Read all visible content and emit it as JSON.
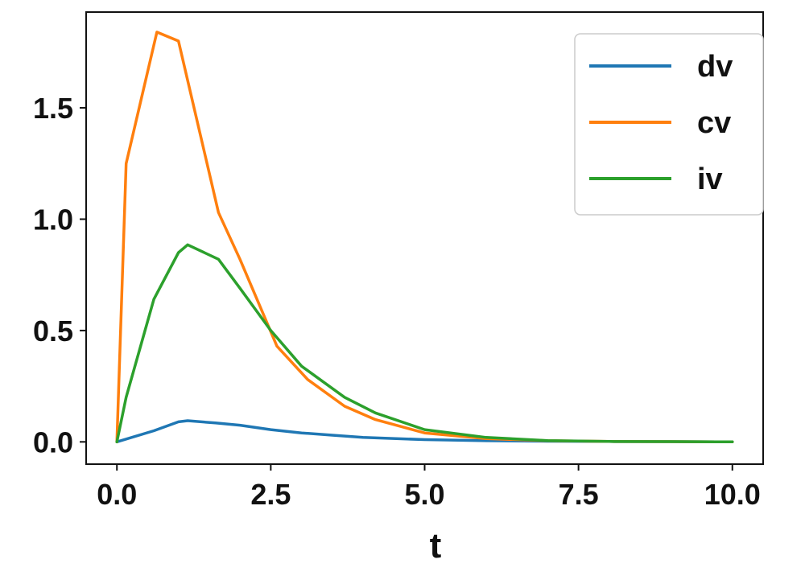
{
  "chart_data": {
    "type": "line",
    "title": "",
    "xlabel": "t",
    "ylabel": "",
    "xlim": [
      -0.5,
      10.5
    ],
    "ylim": [
      -0.1,
      1.93
    ],
    "xticks": [
      0.0,
      2.5,
      5.0,
      7.5,
      10.0
    ],
    "xtick_labels": [
      "0.0",
      "2.5",
      "5.0",
      "7.5",
      "10.0"
    ],
    "yticks": [
      0.0,
      0.5,
      1.0,
      1.5
    ],
    "ytick_labels": [
      "0.0",
      "0.5",
      "1.0",
      "1.5"
    ],
    "grid": false,
    "legend_position": "top-right",
    "series": [
      {
        "name": "dv",
        "color": "#1f77b4",
        "x": [
          0,
          0.6,
          1.0,
          1.15,
          1.6,
          2.0,
          2.5,
          3.0,
          3.5,
          4.0,
          5.0,
          6.0,
          7.0,
          8.0,
          9.0,
          10.0
        ],
        "y": [
          0,
          0.05,
          0.09,
          0.095,
          0.085,
          0.075,
          0.055,
          0.04,
          0.03,
          0.02,
          0.01,
          0.005,
          0.003,
          0.002,
          0.001,
          0
        ]
      },
      {
        "name": "cv",
        "color": "#ff7f0e",
        "x": [
          0,
          0.15,
          0.65,
          1.0,
          1.65,
          2.0,
          2.6,
          3.1,
          3.7,
          4.2,
          5.0,
          6.0,
          7.0,
          8.0,
          9.0,
          10.0
        ],
        "y": [
          0,
          1.25,
          1.84,
          1.8,
          1.03,
          0.82,
          0.43,
          0.28,
          0.16,
          0.1,
          0.04,
          0.015,
          0.005,
          0.002,
          0.001,
          0
        ]
      },
      {
        "name": "iv",
        "color": "#2ca02c",
        "x": [
          0,
          0.15,
          0.6,
          1.0,
          1.15,
          1.65,
          2.0,
          2.5,
          3.0,
          3.7,
          4.2,
          5.0,
          6.0,
          7.0,
          8.0,
          9.0,
          10.0
        ],
        "y": [
          0,
          0.2,
          0.64,
          0.85,
          0.885,
          0.82,
          0.69,
          0.5,
          0.34,
          0.2,
          0.13,
          0.055,
          0.02,
          0.006,
          0.002,
          0.001,
          0
        ]
      }
    ]
  }
}
